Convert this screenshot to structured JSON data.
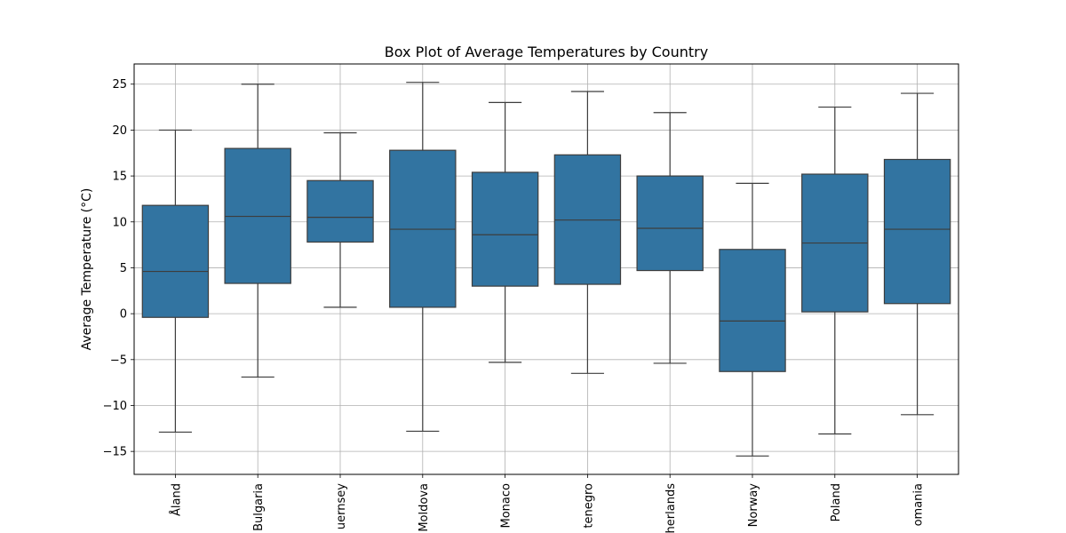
{
  "chart_data": {
    "type": "box",
    "title": "Box Plot of Average Temperatures by Country",
    "xlabel": "",
    "ylabel": "Average Temperature (°C)",
    "ylim": [
      -17.5,
      27.2
    ],
    "yticks": [
      -15,
      -10,
      -5,
      0,
      5,
      10,
      15,
      20,
      25
    ],
    "grid": true,
    "categories": [
      "Åland",
      "Bulgaria",
      "Guernsey",
      "Moldova",
      "Monaco",
      "Montenegro",
      "Netherlands",
      "Norway",
      "Poland",
      "Romania"
    ],
    "visible_tick_labels": [
      "Åland",
      "Bulgaria",
      "uernsey",
      "Moldova",
      "Monaco",
      "tenegro",
      "herlands",
      "Norway",
      "Poland",
      "omania"
    ],
    "box_color": "#3274a1",
    "line_color": "#3d3d3d",
    "boxes": [
      {
        "whisker_low": -12.9,
        "q1": -0.4,
        "median": 4.6,
        "q3": 11.8,
        "whisker_high": 20.0
      },
      {
        "whisker_low": -6.9,
        "q1": 3.3,
        "median": 10.6,
        "q3": 18.0,
        "whisker_high": 25.0
      },
      {
        "whisker_low": 0.7,
        "q1": 7.8,
        "median": 10.5,
        "q3": 14.5,
        "whisker_high": 19.7
      },
      {
        "whisker_low": -12.8,
        "q1": 0.7,
        "median": 9.2,
        "q3": 17.8,
        "whisker_high": 25.2
      },
      {
        "whisker_low": -5.3,
        "q1": 3.0,
        "median": 8.6,
        "q3": 15.4,
        "whisker_high": 23.0
      },
      {
        "whisker_low": -6.5,
        "q1": 3.2,
        "median": 10.2,
        "q3": 17.3,
        "whisker_high": 24.2
      },
      {
        "whisker_low": -5.4,
        "q1": 4.7,
        "median": 9.3,
        "q3": 15.0,
        "whisker_high": 21.9
      },
      {
        "whisker_low": -15.5,
        "q1": -6.3,
        "median": -0.8,
        "q3": 7.0,
        "whisker_high": 14.2
      },
      {
        "whisker_low": -13.1,
        "q1": 0.2,
        "median": 7.7,
        "q3": 15.2,
        "whisker_high": 22.5
      },
      {
        "whisker_low": -11.0,
        "q1": 1.1,
        "median": 9.2,
        "q3": 16.8,
        "whisker_high": 24.0
      }
    ]
  }
}
